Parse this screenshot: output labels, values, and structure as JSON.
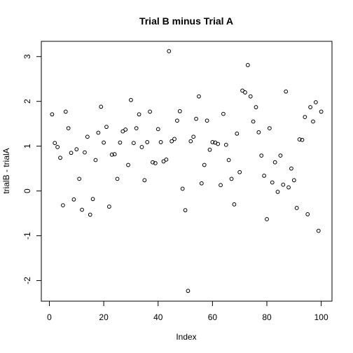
{
  "chart_data": {
    "type": "scatter",
    "title": "Trial B minus Trial A",
    "xlabel": "Index",
    "ylabel": "trialB - trialA",
    "xlim": [
      -2.96,
      103.96
    ],
    "ylim": [
      -2.46,
      3.34
    ],
    "x_ticks": [
      {
        "value": 0,
        "label": "0"
      },
      {
        "value": 20,
        "label": "20"
      },
      {
        "value": 40,
        "label": "40"
      },
      {
        "value": 60,
        "label": "60"
      },
      {
        "value": 80,
        "label": "80"
      },
      {
        "value": 100,
        "label": "100"
      }
    ],
    "y_ticks": [
      {
        "value": -2,
        "label": "-2"
      },
      {
        "value": -1,
        "label": "-1"
      },
      {
        "value": 0,
        "label": "0"
      },
      {
        "value": 1,
        "label": "1"
      },
      {
        "value": 2,
        "label": "2"
      },
      {
        "value": 3,
        "label": "3"
      }
    ],
    "grid": false,
    "legend": "none",
    "marker": "open-circle",
    "x": [
      1,
      2,
      3,
      4,
      5,
      6,
      7,
      8,
      9,
      10,
      11,
      12,
      13,
      14,
      15,
      16,
      17,
      18,
      19,
      20,
      21,
      22,
      23,
      24,
      25,
      26,
      27,
      28,
      29,
      30,
      31,
      32,
      33,
      34,
      35,
      36,
      37,
      38,
      39,
      40,
      41,
      42,
      43,
      44,
      45,
      46,
      47,
      48,
      49,
      50,
      51,
      52,
      53,
      54,
      55,
      56,
      57,
      58,
      59,
      60,
      61,
      62,
      63,
      64,
      65,
      66,
      67,
      68,
      69,
      70,
      71,
      72,
      73,
      74,
      75,
      76,
      77,
      78,
      79,
      80,
      81,
      82,
      83,
      84,
      85,
      86,
      87,
      88,
      89,
      90,
      91,
      92,
      93,
      94,
      95,
      96,
      97,
      98,
      99,
      100
    ],
    "y": [
      1.71,
      1.07,
      0.98,
      0.74,
      -0.32,
      1.77,
      1.4,
      0.85,
      -0.19,
      0.93,
      0.27,
      -0.42,
      0.86,
      1.21,
      -0.53,
      -0.18,
      0.69,
      1.3,
      1.88,
      1.08,
      1.43,
      -0.35,
      0.81,
      0.82,
      0.27,
      1.08,
      1.33,
      1.37,
      0.58,
      2.03,
      1.07,
      1.4,
      1.71,
      0.98,
      0.24,
      1.09,
      1.77,
      0.64,
      0.62,
      1.38,
      1.09,
      0.66,
      0.7,
      3.12,
      1.11,
      1.16,
      1.57,
      1.78,
      0.05,
      -0.43,
      -2.23,
      1.11,
      1.21,
      1.61,
      2.11,
      0.17,
      0.58,
      1.57,
      0.92,
      1.09,
      1.08,
      1.05,
      0.13,
      1.72,
      1.03,
      0.69,
      0.27,
      -0.3,
      1.28,
      0.42,
      2.24,
      2.2,
      2.81,
      2.11,
      1.55,
      1.87,
      1.31,
      0.79,
      0.34,
      -0.63,
      1.4,
      0.19,
      0.64,
      -0.02,
      0.79,
      0.14,
      2.22,
      0.08,
      0.5,
      0.24,
      -0.38,
      1.15,
      1.14,
      1.65,
      -0.52,
      1.87,
      1.55,
      1.98,
      -0.89,
      1.77
    ]
  }
}
